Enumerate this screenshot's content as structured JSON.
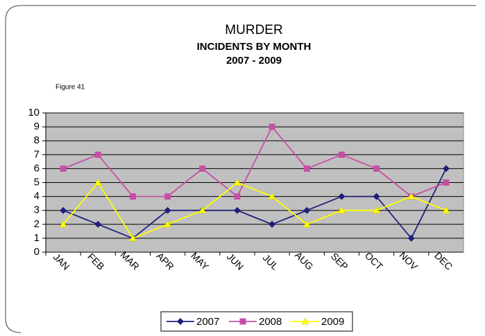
{
  "chart_data": {
    "type": "line",
    "title": "MURDER",
    "subtitle": [
      "INCIDENTS BY MONTH",
      "2007 - 2009"
    ],
    "annotation": "Figure 41",
    "categories": [
      "JAN",
      "FEB",
      "MAR",
      "APR",
      "MAY",
      "JUN",
      "JUL",
      "AUG",
      "SEP",
      "OCT",
      "NOV",
      "DEC"
    ],
    "series": [
      {
        "name": "2007",
        "color": "#1f1f7a",
        "marker": "diamond",
        "values": [
          3,
          2,
          1,
          3,
          3,
          3,
          2,
          3,
          4,
          4,
          1,
          6
        ]
      },
      {
        "name": "2008",
        "color": "#c64fa4",
        "marker": "square",
        "values": [
          6,
          7,
          4,
          4,
          6,
          4,
          9,
          6,
          7,
          6,
          4,
          5
        ]
      },
      {
        "name": "2009",
        "color": "#ffff00",
        "marker": "triangle",
        "values": [
          2,
          5,
          1,
          2,
          3,
          5,
          4,
          2,
          3,
          3,
          4,
          3
        ]
      }
    ],
    "ylim": [
      0,
      10
    ],
    "yticks": [
      0,
      1,
      2,
      3,
      4,
      5,
      6,
      7,
      8,
      9,
      10
    ],
    "grid": true,
    "plot_background": "#c0c0c0",
    "legend": "bottom"
  }
}
